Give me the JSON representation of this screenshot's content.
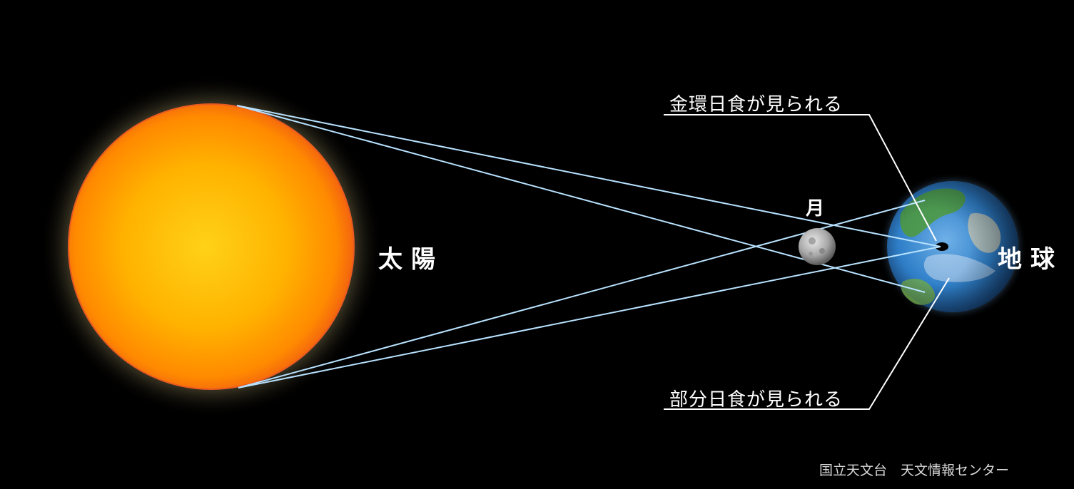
{
  "labels": {
    "sun": "太陽",
    "moon": "月",
    "earth": "地球",
    "annular_eclipse": "金環日食が見られる",
    "partial_eclipse": "部分日食が見られる"
  },
  "credit": "国立天文台　天文情報センター",
  "colors": {
    "background": "#000000",
    "sun_core": "#ffd21a",
    "sun_edge": "#ff7a00",
    "sun_glow": "#fff6c8",
    "ray": "#b8e2ff",
    "callout_line": "#ffffff",
    "moon": "#b0b0b0",
    "earth_ocean": "#2f7fc8",
    "earth_land": "#4f9a3a"
  }
}
